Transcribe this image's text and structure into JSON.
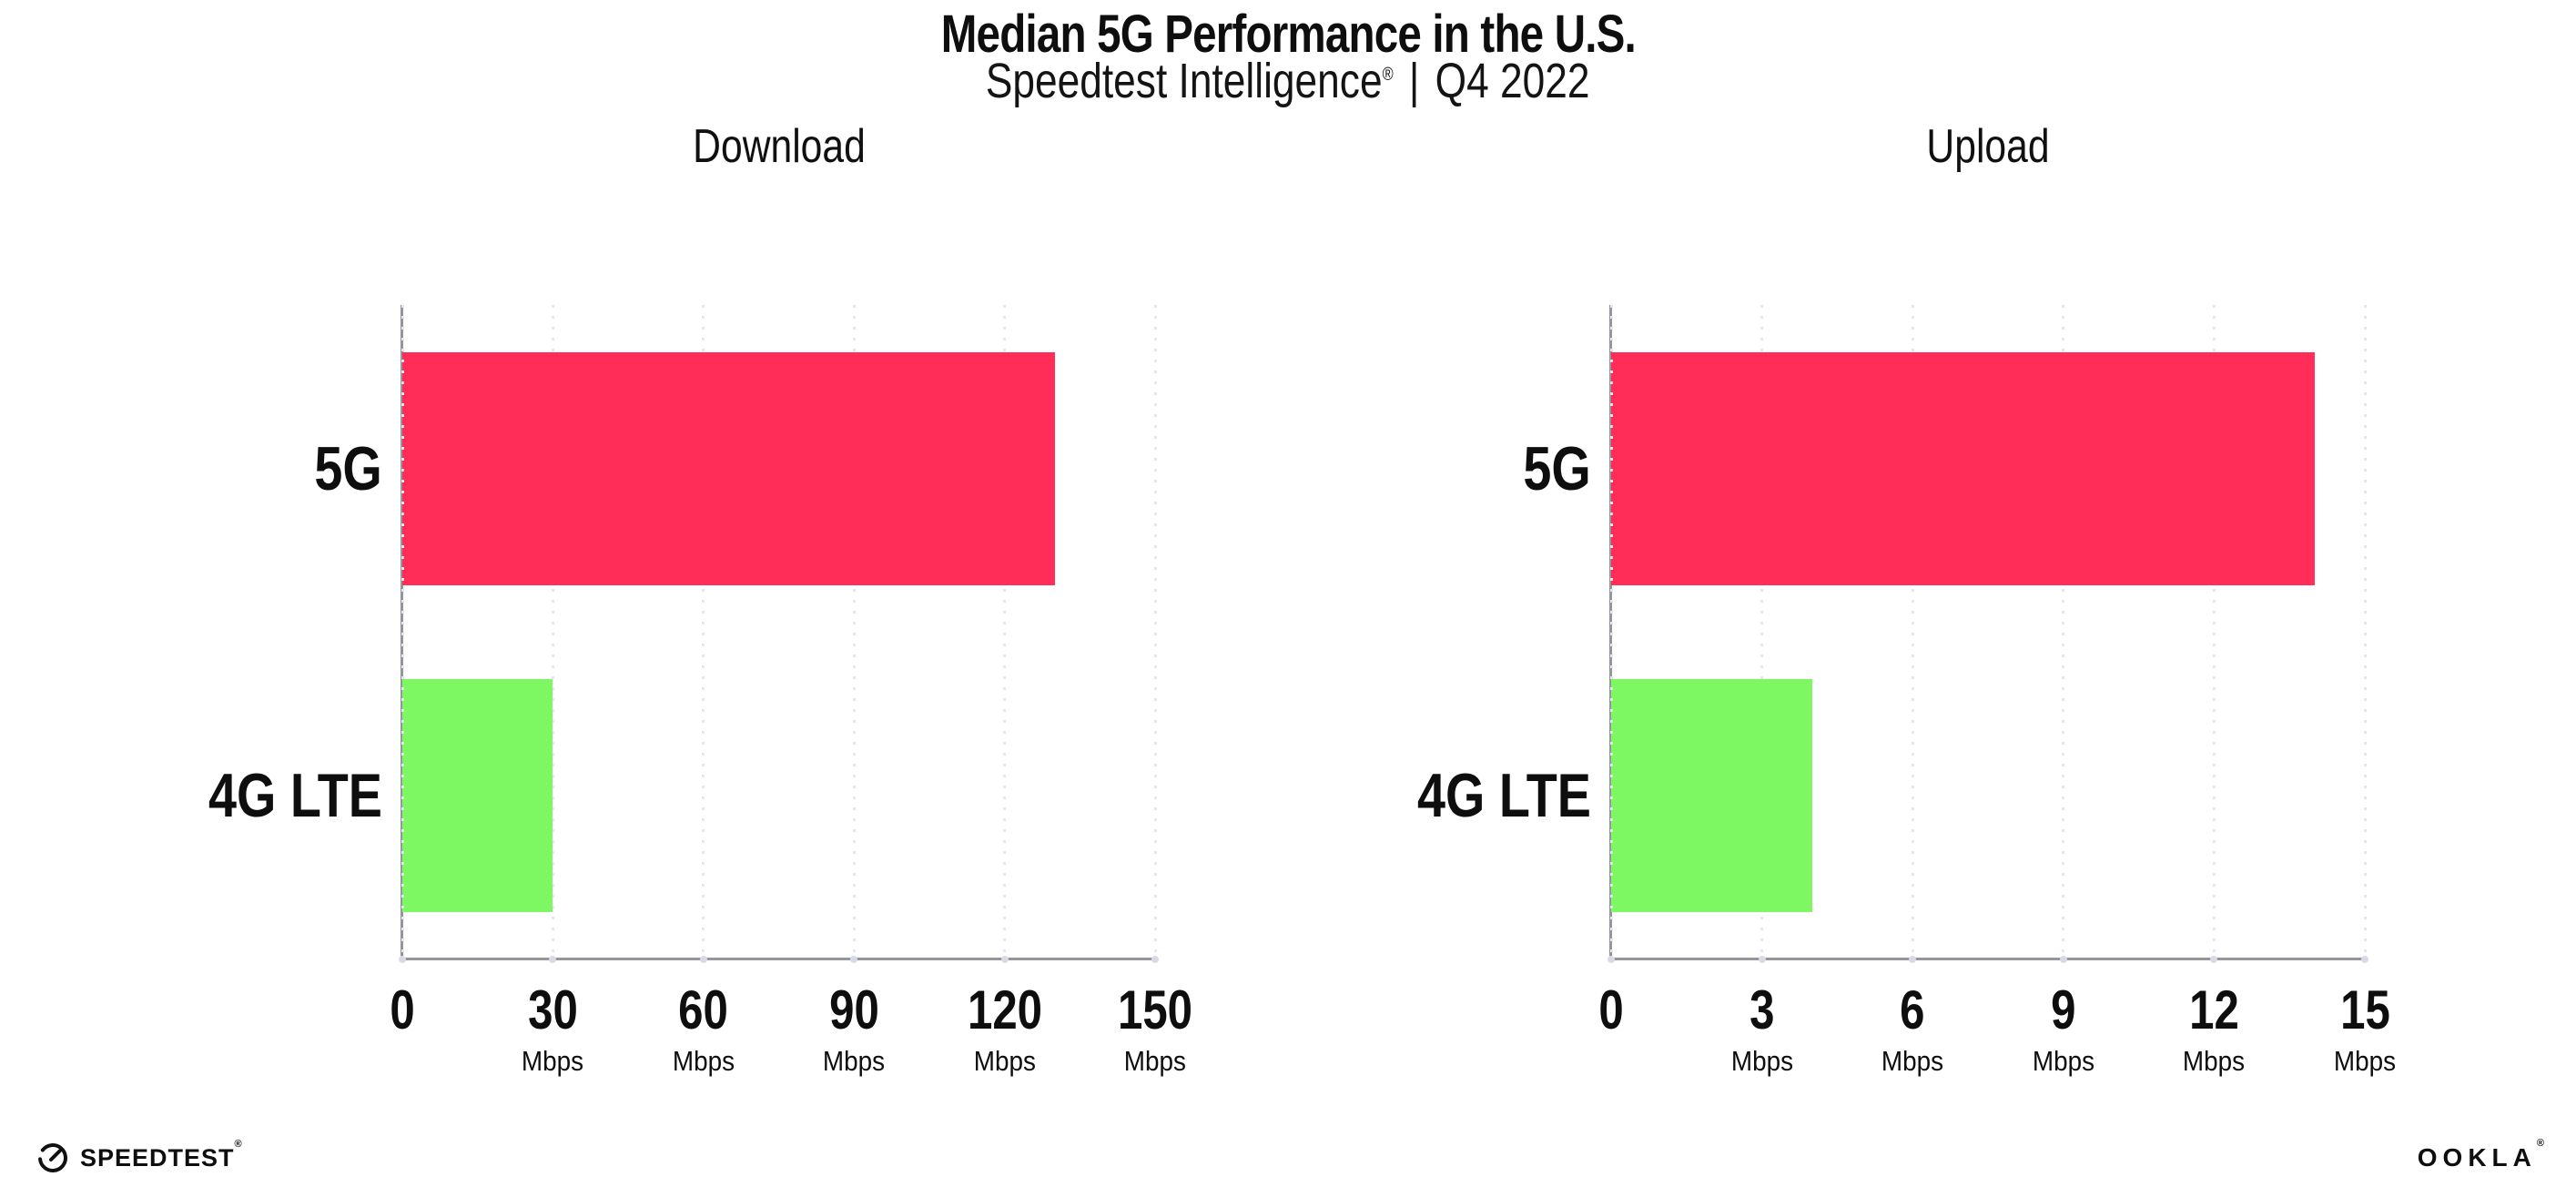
{
  "header": {
    "title": "Median 5G Performance in the U.S.",
    "subtitle_brand": "Speedtest Intelligence",
    "subtitle_registered_mark": "®",
    "subtitle_separator": "|",
    "subtitle_period": "Q4 2022"
  },
  "chart_data": [
    {
      "type": "bar",
      "orientation": "horizontal",
      "title": "Download",
      "categories": [
        "5G",
        "4G LTE"
      ],
      "values": [
        130,
        30
      ],
      "unit": "Mbps",
      "xlim": [
        0,
        150
      ],
      "xticks": [
        0,
        30,
        60,
        90,
        120,
        150
      ],
      "bar_colors": [
        "#FF2D58",
        "#7DF862"
      ],
      "grid": "dotted-vertical-on",
      "legend": "none"
    },
    {
      "type": "bar",
      "orientation": "horizontal",
      "title": "Upload",
      "categories": [
        "5G",
        "4G LTE"
      ],
      "values": [
        14,
        4
      ],
      "unit": "Mbps",
      "xlim": [
        0,
        15
      ],
      "xticks": [
        0,
        3,
        6,
        9,
        12,
        15
      ],
      "bar_colors": [
        "#FF2D58",
        "#7DF862"
      ],
      "grid": "dotted-vertical-on",
      "legend": "none"
    }
  ],
  "colors": {
    "bar_5g": "#FF2D58",
    "bar_4g_lte": "#7DF862",
    "axis": "#95959c",
    "grid_dot": "#e4e5f0",
    "axis_tick_dot": "#d9dae8",
    "text": "#0e0e0e"
  },
  "footer": {
    "speedtest_label": "SPEEDTEST",
    "speedtest_registered_mark": "®",
    "ookla_label": "OOKLA",
    "ookla_registered_mark": "®"
  }
}
